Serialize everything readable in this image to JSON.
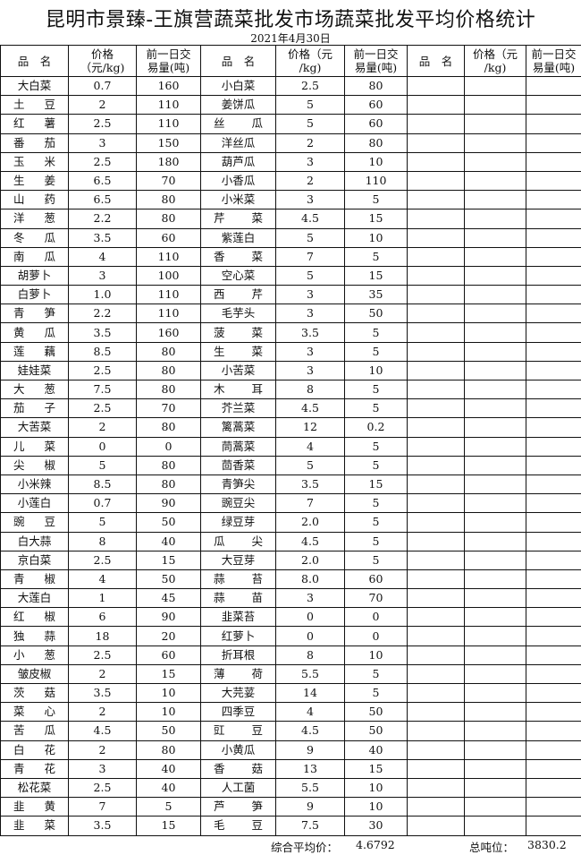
{
  "title": "昆明市景臻-王旗营蔬菜批发市场蔬菜批发平均价格统计",
  "date": "2021年4月30日",
  "headers": [
    "品　名",
    "价格（元/kg)",
    "前一日交易量(吨)"
  ],
  "header_lines": {
    "price": [
      "价格（元",
      "/kg)"
    ],
    "volume": [
      "前一日交",
      "易量(吨)"
    ]
  },
  "columns": [
    [
      [
        "大白菜",
        "0.7",
        "160"
      ],
      [
        "土豆",
        "2",
        "110"
      ],
      [
        "红薯",
        "2.5",
        "110"
      ],
      [
        "番茄",
        "3",
        "150"
      ],
      [
        "玉米",
        "2.5",
        "180"
      ],
      [
        "生姜",
        "6.5",
        "70"
      ],
      [
        "山药",
        "6.5",
        "80"
      ],
      [
        "洋葱",
        "2.2",
        "80"
      ],
      [
        "冬瓜",
        "3.5",
        "60"
      ],
      [
        "南瓜",
        "4",
        "110"
      ],
      [
        "胡萝卜",
        "3",
        "100"
      ],
      [
        "白萝卜",
        "1.0",
        "110"
      ],
      [
        "青笋",
        "2.2",
        "110"
      ],
      [
        "黄瓜",
        "3.5",
        "160"
      ],
      [
        "莲藕",
        "8.5",
        "80"
      ],
      [
        "娃娃菜",
        "2.5",
        "80"
      ],
      [
        "大葱",
        "7.5",
        "80"
      ],
      [
        "茄子",
        "2.5",
        "70"
      ],
      [
        "大苦菜",
        "2",
        "80"
      ],
      [
        "儿菜",
        "0",
        "0"
      ],
      [
        "尖椒",
        "5",
        "80"
      ],
      [
        "小米辣",
        "8.5",
        "80"
      ],
      [
        "小莲白",
        "0.7",
        "90"
      ],
      [
        "豌豆",
        "5",
        "50"
      ],
      [
        "白大蒜",
        "8",
        "40"
      ],
      [
        "京白菜",
        "2.5",
        "15"
      ],
      [
        "青椒",
        "4",
        "50"
      ],
      [
        "大莲白",
        "1",
        "45"
      ],
      [
        "红椒",
        "6",
        "90"
      ],
      [
        "独蒜",
        "18",
        "20"
      ],
      [
        "小葱",
        "2.5",
        "60"
      ],
      [
        "皱皮椒",
        "2",
        "15"
      ],
      [
        "茨菇",
        "3.5",
        "10"
      ],
      [
        "菜心",
        "2",
        "10"
      ],
      [
        "苦瓜",
        "4.5",
        "50"
      ],
      [
        "白花",
        "2",
        "80"
      ],
      [
        "青花",
        "3",
        "40"
      ],
      [
        "松花菜",
        "2.5",
        "40"
      ],
      [
        "韭黄",
        "7",
        "5"
      ],
      [
        "韭菜",
        "3.5",
        "15"
      ]
    ],
    [
      [
        "小白菜",
        "2.5",
        "80"
      ],
      [
        "姜饼瓜",
        "5",
        "60"
      ],
      [
        "丝瓜",
        "5",
        "60"
      ],
      [
        "洋丝瓜",
        "2",
        "80"
      ],
      [
        "葫芦瓜",
        "3",
        "10"
      ],
      [
        "小香瓜",
        "2",
        "110"
      ],
      [
        "小米菜",
        "3",
        "5"
      ],
      [
        "芹菜",
        "4.5",
        "15"
      ],
      [
        "紫莲白",
        "5",
        "10"
      ],
      [
        "香菜",
        "7",
        "5"
      ],
      [
        "空心菜",
        "5",
        "15"
      ],
      [
        "西芹",
        "3",
        "35"
      ],
      [
        "毛芋头",
        "3",
        "50"
      ],
      [
        "菠菜",
        "3.5",
        "5"
      ],
      [
        "生菜",
        "3",
        "5"
      ],
      [
        "小苦菜",
        "3",
        "10"
      ],
      [
        "木耳",
        "8",
        "5"
      ],
      [
        "芥兰菜",
        "4.5",
        "5"
      ],
      [
        "篱蒿菜",
        "12",
        "0.2"
      ],
      [
        "茼蒿菜",
        "4",
        "5"
      ],
      [
        "茴香菜",
        "5",
        "5"
      ],
      [
        "青笋尖",
        "3.5",
        "15"
      ],
      [
        "豌豆尖",
        "7",
        "5"
      ],
      [
        "绿豆芽",
        "2.0",
        "5"
      ],
      [
        "瓜尖",
        "4.5",
        "5"
      ],
      [
        "大豆芽",
        "2.0",
        "5"
      ],
      [
        "蒜苔",
        "8.0",
        "60"
      ],
      [
        "蒜苗",
        "3",
        "70"
      ],
      [
        "韭菜苔",
        "0",
        "0"
      ],
      [
        "红萝卜",
        "0",
        "0"
      ],
      [
        "折耳根",
        "8",
        "10"
      ],
      [
        "薄荷",
        "5.5",
        "5"
      ],
      [
        "大芫荽",
        "14",
        "5"
      ],
      [
        "四季豆",
        "4",
        "50"
      ],
      [
        "豇豆",
        "4.5",
        "50"
      ],
      [
        "小黄瓜",
        "9",
        "40"
      ],
      [
        "香菇",
        "13",
        "15"
      ],
      [
        "人工菌",
        "5.5",
        "10"
      ],
      [
        "芦笋",
        "9",
        "10"
      ],
      [
        "毛豆",
        "7.5",
        "30"
      ]
    ]
  ],
  "footer": {
    "avg_label": "综合平均价：",
    "avg_value": "4.6792",
    "total_label": "总吨位：",
    "total_value": "3830.2"
  }
}
